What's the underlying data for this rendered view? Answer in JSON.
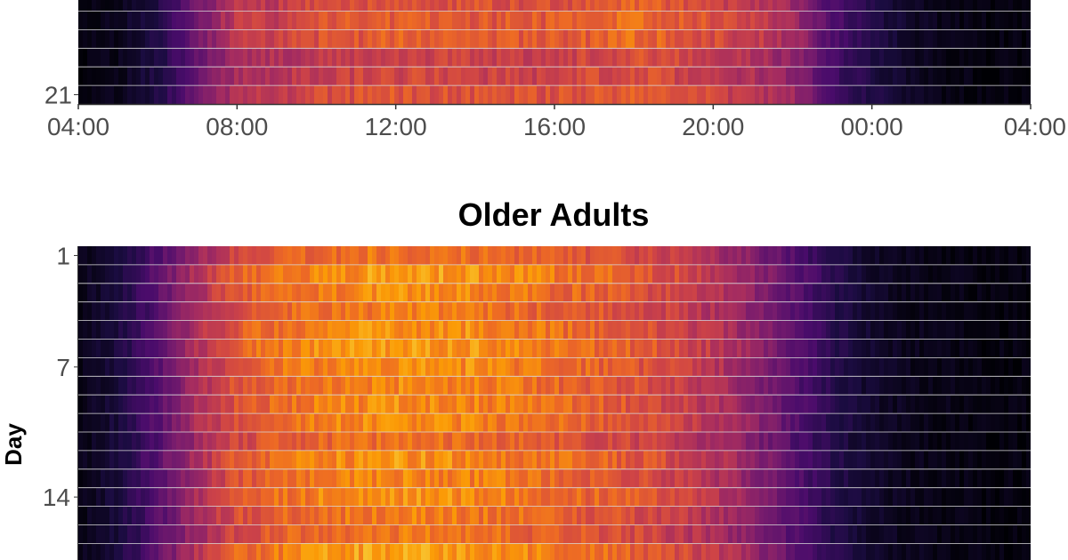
{
  "chart_data": [
    {
      "type": "heatmap",
      "title": "",
      "xlabel": "",
      "ylabel": "",
      "x_ticks": [
        "04:00",
        "08:00",
        "12:00",
        "16:00",
        "20:00",
        "00:00",
        "04:00"
      ],
      "x_range_hours": [
        4,
        28
      ],
      "y_ticks": [
        "21"
      ],
      "days_visible": [
        16,
        17,
        18,
        19,
        20,
        21
      ],
      "colormap": "inferno",
      "colors": [
        "#000004",
        "#1b0c41",
        "#4a0c6b",
        "#781c6d",
        "#a52c60",
        "#cf4446",
        "#ed6925",
        "#fb9b06",
        "#f7d13d",
        "#fcffa4"
      ],
      "grid_line_color": "#d9d9d9",
      "activity_profile": {
        "hours": [
          4,
          5,
          6,
          7,
          8,
          9,
          10,
          12,
          14,
          16,
          17,
          18,
          19,
          20,
          21,
          22,
          23,
          24,
          25,
          26,
          27,
          28
        ],
        "intensity": [
          0.02,
          0.04,
          0.12,
          0.3,
          0.48,
          0.5,
          0.56,
          0.6,
          0.58,
          0.58,
          0.6,
          0.63,
          0.6,
          0.55,
          0.5,
          0.42,
          0.22,
          0.12,
          0.06,
          0.03,
          0.02,
          0.02
        ]
      }
    },
    {
      "type": "heatmap",
      "title": "Older Adults",
      "xlabel": "",
      "ylabel": "Day",
      "y_ticks": [
        "1",
        "7",
        "14"
      ],
      "x_range_hours": [
        4,
        28
      ],
      "days_visible": [
        1,
        2,
        3,
        4,
        5,
        6,
        7,
        8,
        9,
        10,
        11,
        12,
        13,
        14,
        15,
        16,
        17
      ],
      "colormap": "inferno",
      "colors": [
        "#000004",
        "#1b0c41",
        "#4a0c6b",
        "#781c6d",
        "#a52c60",
        "#cf4446",
        "#ed6925",
        "#fb9b06",
        "#f7d13d",
        "#fcffa4"
      ],
      "grid_line_color": "#d9d9d9",
      "activity_profile": {
        "hours": [
          4,
          5,
          6,
          7,
          8,
          9,
          10,
          12,
          14,
          16,
          18,
          19,
          20,
          21,
          22,
          23,
          24,
          25,
          26,
          27,
          28
        ],
        "intensity": [
          0.03,
          0.1,
          0.25,
          0.45,
          0.6,
          0.66,
          0.7,
          0.74,
          0.72,
          0.66,
          0.6,
          0.55,
          0.48,
          0.38,
          0.26,
          0.14,
          0.07,
          0.04,
          0.03,
          0.02,
          0.02
        ]
      }
    }
  ]
}
